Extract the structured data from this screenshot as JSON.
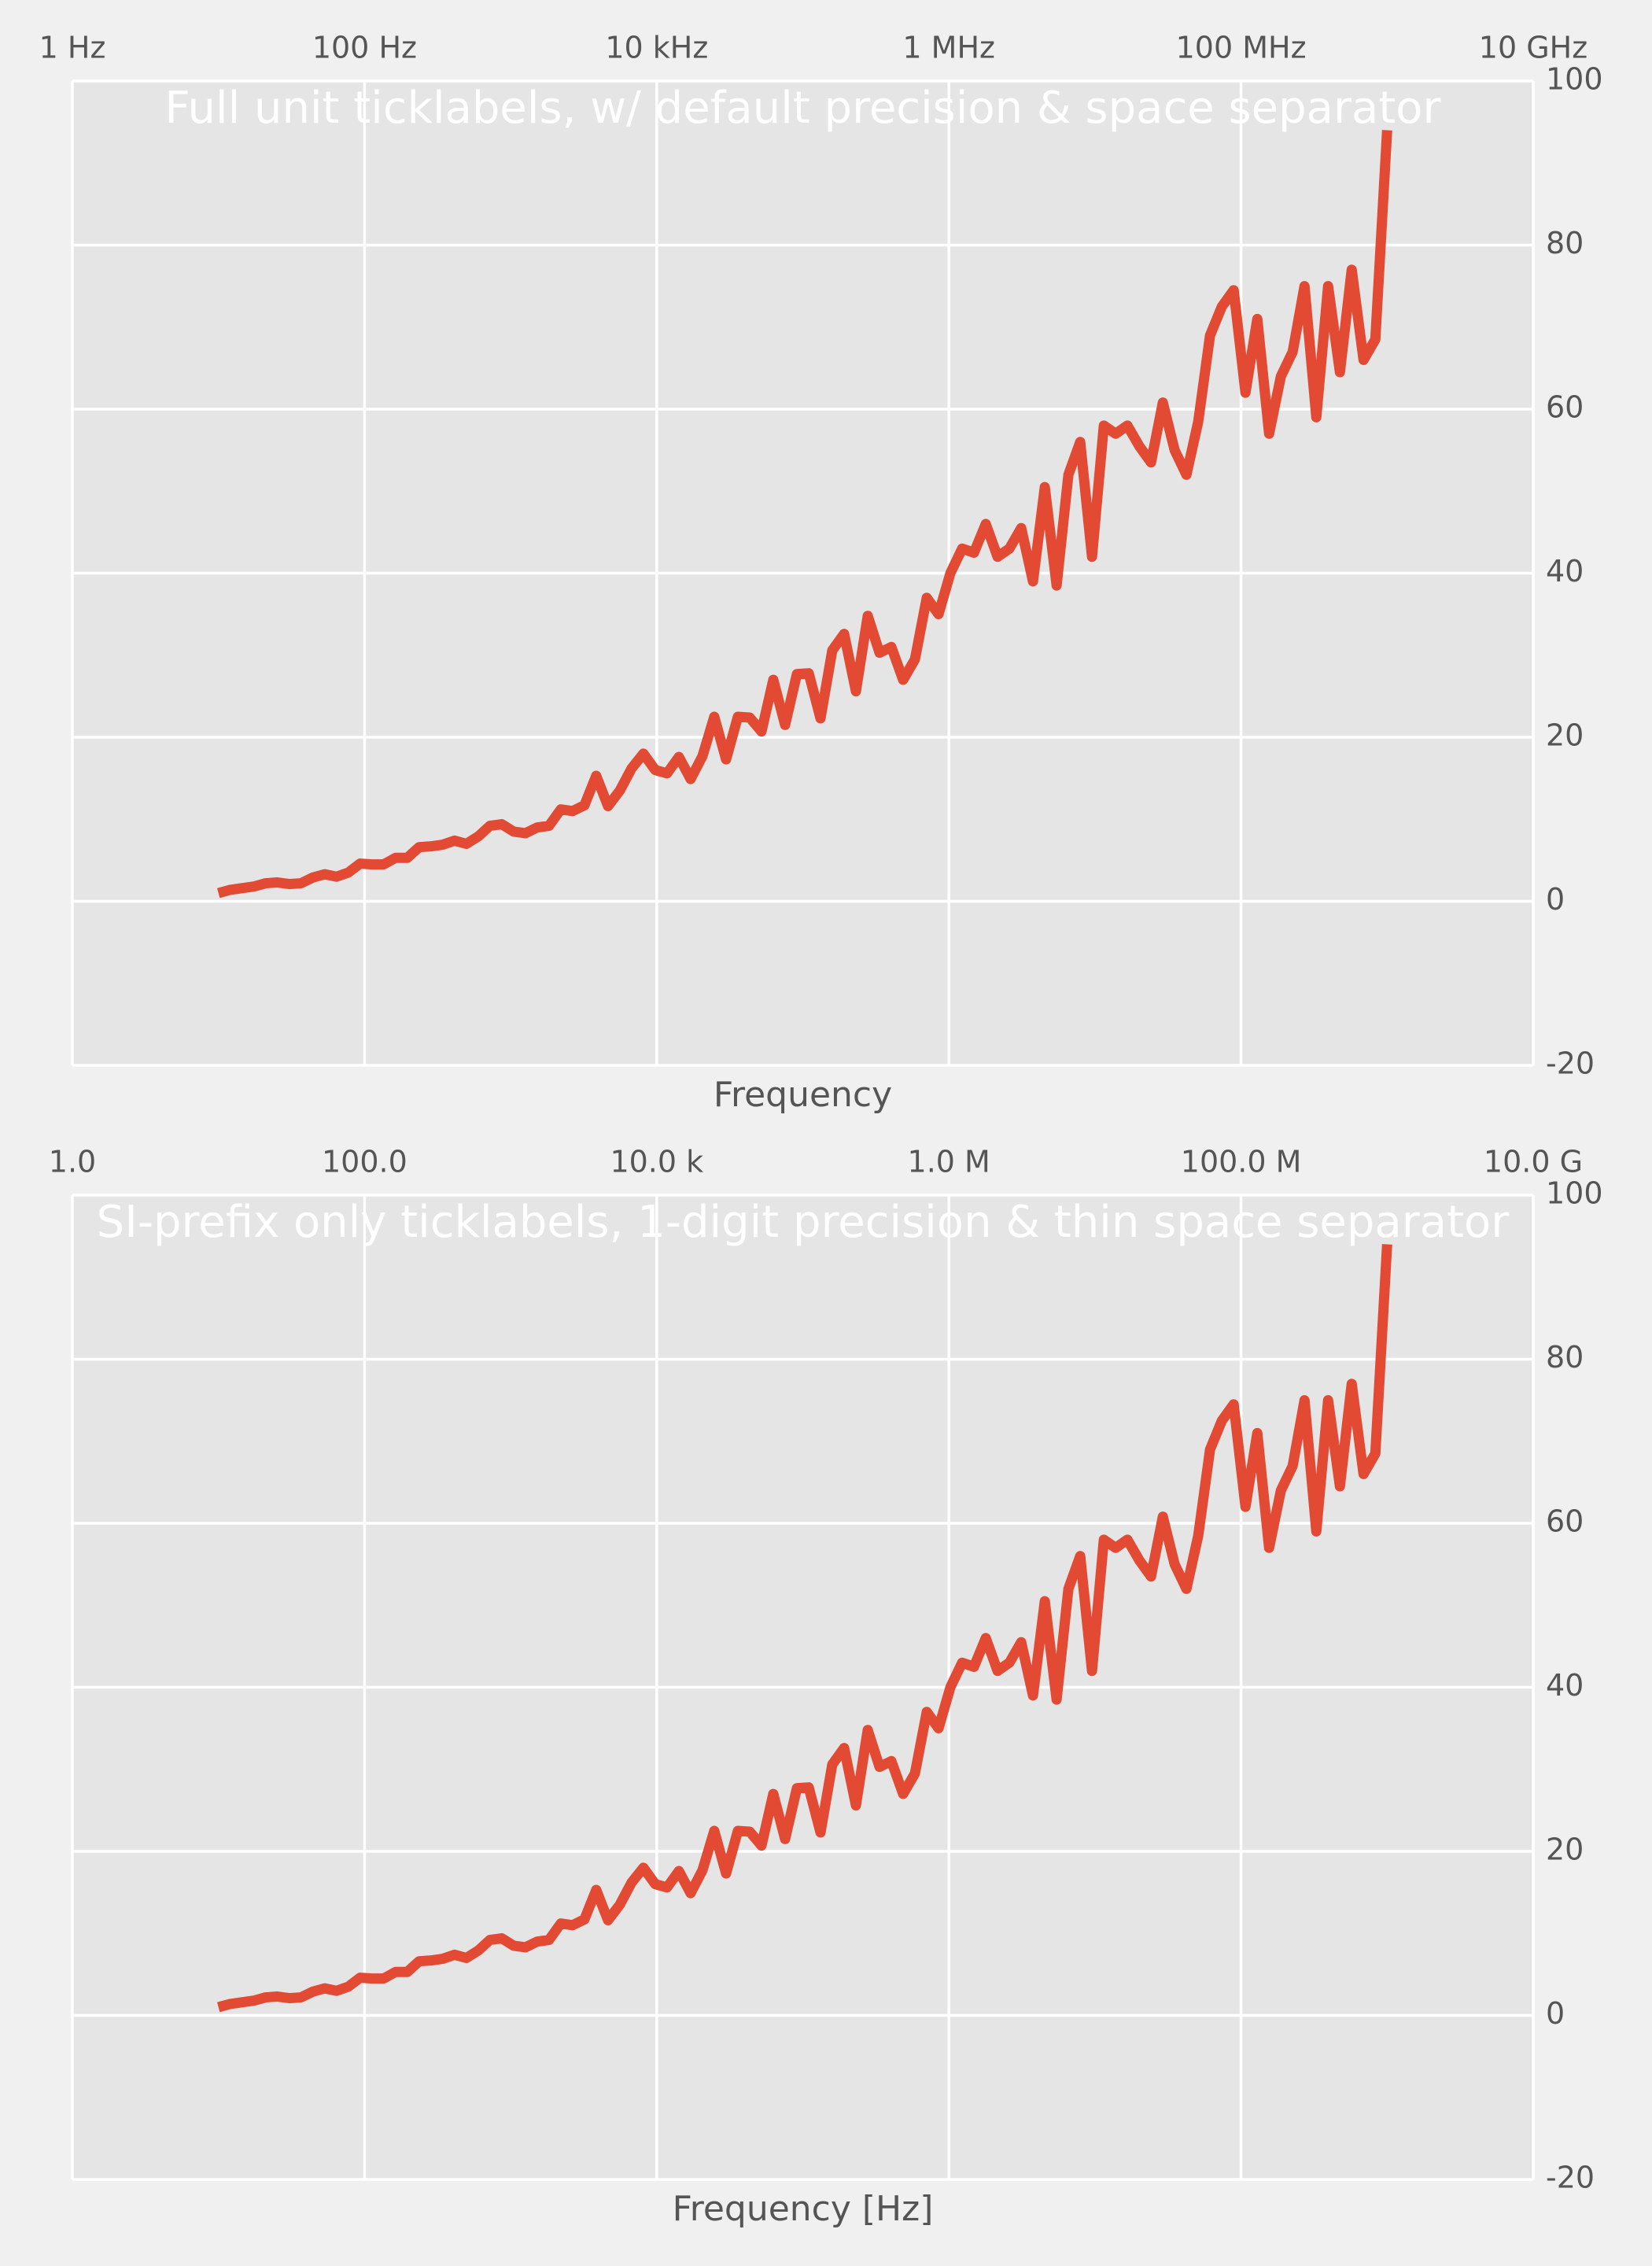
{
  "chart_data": [
    {
      "type": "line",
      "title": "Full unit ticklabels, w/ default precision & space separator",
      "xlabel": "Frequency",
      "log_x": true,
      "xaxis_position": "top",
      "yaxis_position": "right",
      "grid": true,
      "xlim": [
        1,
        10000000000.0
      ],
      "ylim": [
        -20,
        100
      ],
      "xticks": [
        {
          "value": 1,
          "label": "1 Hz"
        },
        {
          "value": 100,
          "label": "100 Hz"
        },
        {
          "value": 10000,
          "label": "10 kHz"
        },
        {
          "value": 1000000,
          "label": "1 MHz"
        },
        {
          "value": 100000000,
          "label": "100 MHz"
        },
        {
          "value": 10000000000,
          "label": "10 GHz"
        }
      ],
      "yticks": [
        -20,
        0,
        20,
        40,
        60,
        80,
        100
      ],
      "x": [
        10,
        12.05,
        14.51,
        17.48,
        21.05,
        25.35,
        30.54,
        36.78,
        44.31,
        53.37,
        64.28,
        77.43,
        93.26,
        112.3,
        135.3,
        163.0,
        196.3,
        236.4,
        284.8,
        343.1,
        413.2,
        497.7,
        599.5,
        722.1,
        869.7,
        1048,
        1262,
        1520,
        1831,
        2205,
        2656,
        3199,
        3854,
        4642,
        5591,
        6734,
        8111,
        9770,
        11770,
        14180,
        17070,
        20570,
        24770,
        29840,
        35940,
        43290,
        52140,
        62800,
        75650,
        91120,
        109800,
        132200,
        159200,
        191800,
        231000,
        278300,
        335200,
        403700,
        486300,
        585700,
        705500,
        849800,
        1024000,
        1233000,
        1485000,
        1789000,
        2154000,
        2595000,
        3126000,
        3765000,
        4535000,
        5462000,
        6579000,
        7925000,
        9546000,
        11500000,
        13850000,
        16680000,
        20090000,
        24200000,
        29150000,
        35110000,
        42290000,
        50940000,
        61360000,
        73910000,
        89020000,
        107200000,
        129200000,
        155600000,
        187400000,
        225700000,
        271900000,
        327500000,
        394400000,
        475100000,
        572200000,
        689300000,
        830200000,
        1000000000
      ],
      "series": [
        {
          "color": "#e24a33",
          "values": [
            1.0,
            1.4,
            1.6,
            1.8,
            2.2,
            2.3,
            2.1,
            2.2,
            2.9,
            3.3,
            3.0,
            3.5,
            4.6,
            4.5,
            4.5,
            5.3,
            5.3,
            6.6,
            6.7,
            6.9,
            7.4,
            7.0,
            7.9,
            9.2,
            9.4,
            8.5,
            8.3,
            9.0,
            9.2,
            11.2,
            11.0,
            11.7,
            15.3,
            11.6,
            13.5,
            16.2,
            18.0,
            16.0,
            15.6,
            17.6,
            14.9,
            17.7,
            22.5,
            17.3,
            22.5,
            22.4,
            20.7,
            27.0,
            21.5,
            27.7,
            27.8,
            22.3,
            30.6,
            32.6,
            25.6,
            34.8,
            30.3,
            31.0,
            27.0,
            29.5,
            37.0,
            35.0,
            40.0,
            43.0,
            42.5,
            46.0,
            42.0,
            43.0,
            45.5,
            39.0,
            50.5,
            38.5,
            52.0,
            56.0,
            42.0,
            58.0,
            57.0,
            58.0,
            55.5,
            53.5,
            60.8,
            55.0,
            52.0,
            58.5,
            69.0,
            72.5,
            74.5,
            62.0,
            71.0,
            57.0,
            64.0,
            67.0,
            75.0,
            59.0,
            75.0,
            64.5,
            77.0,
            66.0,
            68.5,
            94.0
          ]
        }
      ]
    },
    {
      "type": "line",
      "title": "SI-prefix only ticklabels, 1-digit precision & thin space separator",
      "xlabel": "Frequency [Hz]",
      "log_x": true,
      "xaxis_position": "top",
      "yaxis_position": "right",
      "grid": true,
      "xlim": [
        1,
        10000000000.0
      ],
      "ylim": [
        -20,
        100
      ],
      "xticks": [
        {
          "value": 1,
          "label": "1.0"
        },
        {
          "value": 100,
          "label": "100.0"
        },
        {
          "value": 10000,
          "label": "10.0 k"
        },
        {
          "value": 1000000,
          "label": "1.0 M"
        },
        {
          "value": 100000000,
          "label": "100.0 M"
        },
        {
          "value": 10000000000,
          "label": "10.0 G"
        }
      ],
      "yticks": [
        -20,
        0,
        20,
        40,
        60,
        80,
        100
      ],
      "x": [
        10,
        12.05,
        14.51,
        17.48,
        21.05,
        25.35,
        30.54,
        36.78,
        44.31,
        53.37,
        64.28,
        77.43,
        93.26,
        112.3,
        135.3,
        163.0,
        196.3,
        236.4,
        284.8,
        343.1,
        413.2,
        497.7,
        599.5,
        722.1,
        869.7,
        1048,
        1262,
        1520,
        1831,
        2205,
        2656,
        3199,
        3854,
        4642,
        5591,
        6734,
        8111,
        9770,
        11770,
        14180,
        17070,
        20570,
        24770,
        29840,
        35940,
        43290,
        52140,
        62800,
        75650,
        91120,
        109800,
        132200,
        159200,
        191800,
        231000,
        278300,
        335200,
        403700,
        486300,
        585700,
        705500,
        849800,
        1024000,
        1233000,
        1485000,
        1789000,
        2154000,
        2595000,
        3126000,
        3765000,
        4535000,
        5462000,
        6579000,
        7925000,
        9546000,
        11500000,
        13850000,
        16680000,
        20090000,
        24200000,
        29150000,
        35110000,
        42290000,
        50940000,
        61360000,
        73910000,
        89020000,
        107200000,
        129200000,
        155600000,
        187400000,
        225700000,
        271900000,
        327500000,
        394400000,
        475100000,
        572200000,
        689300000,
        830200000,
        1000000000
      ],
      "series": [
        {
          "color": "#e24a33",
          "values": [
            1.0,
            1.4,
            1.6,
            1.8,
            2.2,
            2.3,
            2.1,
            2.2,
            2.9,
            3.3,
            3.0,
            3.5,
            4.6,
            4.5,
            4.5,
            5.3,
            5.3,
            6.6,
            6.7,
            6.9,
            7.4,
            7.0,
            7.9,
            9.2,
            9.4,
            8.5,
            8.3,
            9.0,
            9.2,
            11.2,
            11.0,
            11.7,
            15.3,
            11.6,
            13.5,
            16.2,
            18.0,
            16.0,
            15.6,
            17.6,
            14.9,
            17.7,
            22.5,
            17.3,
            22.5,
            22.4,
            20.7,
            27.0,
            21.5,
            27.7,
            27.8,
            22.3,
            30.6,
            32.6,
            25.6,
            34.8,
            30.3,
            31.0,
            27.0,
            29.5,
            37.0,
            35.0,
            40.0,
            43.0,
            42.5,
            46.0,
            42.0,
            43.0,
            45.5,
            39.0,
            50.5,
            38.5,
            52.0,
            56.0,
            42.0,
            58.0,
            57.0,
            58.0,
            55.5,
            53.5,
            60.8,
            55.0,
            52.0,
            58.5,
            69.0,
            72.5,
            74.5,
            62.0,
            71.0,
            57.0,
            64.0,
            67.0,
            75.0,
            59.0,
            75.0,
            64.5,
            77.0,
            66.0,
            68.5,
            94.0
          ]
        }
      ]
    }
  ]
}
